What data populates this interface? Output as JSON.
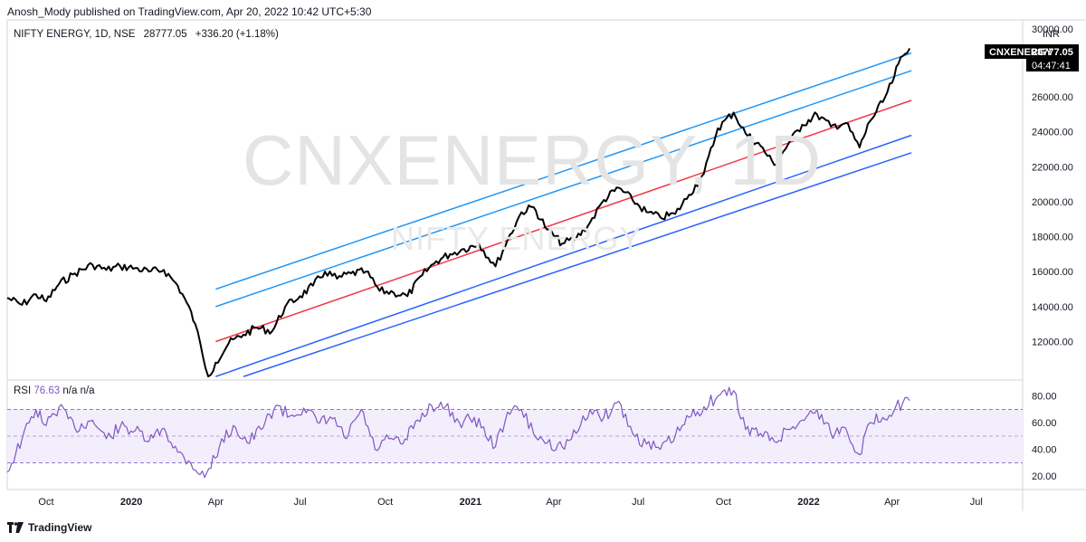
{
  "publisher": "Anosh_Mody published on TradingView.com, Apr 20, 2022 10:42 UTC+5:30",
  "legend": {
    "title": "NIFTY ENERGY, 1D, NSE",
    "last": "28777.05",
    "change": "+336.20 (+1.18%)"
  },
  "watermark": {
    "symbol": "CNXENERGY, 1D",
    "description": "NIFTY ENERGY"
  },
  "price_axis": {
    "currency": "INR",
    "top_tick": "30000.00",
    "ticks": [
      "26000.00",
      "24000.00",
      "22000.00",
      "20000.00",
      "18000.00",
      "16000.00",
      "14000.00",
      "12000.00"
    ]
  },
  "price_tag": {
    "symbol": "CNXENERGY",
    "price": "28777.05",
    "countdown": "04:47:41"
  },
  "rsi_legend": {
    "name": "RSI",
    "value": "76.63",
    "na1": "n/a",
    "na2": "n/a"
  },
  "rsi_axis": {
    "ticks": [
      "80.00",
      "60.00",
      "40.00",
      "20.00"
    ]
  },
  "time_axis": {
    "labels": [
      "Oct",
      "2020",
      "Apr",
      "Jul",
      "Oct",
      "2021",
      "Apr",
      "Jul",
      "Oct",
      "2022",
      "Apr",
      "Jul"
    ]
  },
  "footer": {
    "brand": "TradingView"
  },
  "colors": {
    "price_line": "#000000",
    "channel_outer": "#2196f3",
    "channel_lower": "#2962ff",
    "regression_mid": "#f23645",
    "rsi_line": "#7e57c2",
    "rsi_band": "#f3eefb",
    "tag_bg": "#000000"
  },
  "chart_data": [
    {
      "type": "line",
      "title": "NIFTY ENERGY, 1D, NSE",
      "ylabel": "INR",
      "ylim": [
        9800,
        30400
      ],
      "x_range": [
        "2019-08-20",
        "2022-08-20"
      ],
      "series": [
        {
          "values": [
            [
              "2019-08-20",
              14500
            ],
            [
              "2019-09-05",
              14100
            ],
            [
              "2019-09-20",
              14700
            ],
            [
              "2019-10-01",
              14300
            ],
            [
              "2019-10-15",
              15300
            ],
            [
              "2019-11-01",
              15900
            ],
            [
              "2019-11-20",
              16400
            ],
            [
              "2019-12-05",
              16100
            ],
            [
              "2019-12-20",
              16300
            ],
            [
              "2020-01-05",
              16200
            ],
            [
              "2020-01-20",
              16000
            ],
            [
              "2020-02-05",
              16100
            ],
            [
              "2020-02-20",
              15200
            ],
            [
              "2020-03-01",
              14200
            ],
            [
              "2020-03-10",
              13000
            ],
            [
              "2020-03-18",
              11200
            ],
            [
              "2020-03-24",
              10000
            ],
            [
              "2020-04-01",
              10800
            ],
            [
              "2020-04-15",
              11900
            ],
            [
              "2020-05-01",
              12400
            ],
            [
              "2020-05-15",
              12800
            ],
            [
              "2020-06-01",
              12600
            ],
            [
              "2020-06-15",
              14000
            ],
            [
              "2020-07-01",
              14600
            ],
            [
              "2020-07-15",
              15200
            ],
            [
              "2020-07-28",
              16000
            ],
            [
              "2020-08-10",
              15600
            ],
            [
              "2020-08-25",
              15900
            ],
            [
              "2020-09-10",
              16000
            ],
            [
              "2020-09-25",
              14900
            ],
            [
              "2020-10-10",
              14800
            ],
            [
              "2020-10-25",
              14600
            ],
            [
              "2020-11-10",
              15800
            ],
            [
              "2020-11-25",
              16600
            ],
            [
              "2020-12-10",
              17000
            ],
            [
              "2020-12-25",
              17300
            ],
            [
              "2021-01-10",
              17600
            ],
            [
              "2021-01-28",
              16300
            ],
            [
              "2021-02-10",
              17800
            ],
            [
              "2021-02-25",
              19400
            ],
            [
              "2021-03-10",
              19700
            ],
            [
              "2021-03-25",
              18400
            ],
            [
              "2021-04-10",
              17600
            ],
            [
              "2021-04-25",
              17900
            ],
            [
              "2021-05-10",
              18800
            ],
            [
              "2021-05-25",
              20100
            ],
            [
              "2021-06-10",
              20800
            ],
            [
              "2021-06-25",
              20100
            ],
            [
              "2021-07-10",
              19400
            ],
            [
              "2021-07-25",
              19100
            ],
            [
              "2021-08-10",
              19300
            ],
            [
              "2021-08-25",
              20400
            ],
            [
              "2021-09-10",
              21600
            ],
            [
              "2021-09-25",
              24200
            ],
            [
              "2021-10-12",
              25100
            ],
            [
              "2021-10-25",
              23900
            ],
            [
              "2021-11-10",
              23200
            ],
            [
              "2021-11-25",
              22100
            ],
            [
              "2021-12-10",
              23300
            ],
            [
              "2021-12-25",
              24400
            ],
            [
              "2022-01-10",
              25000
            ],
            [
              "2022-01-25",
              24300
            ],
            [
              "2022-02-10",
              24500
            ],
            [
              "2022-02-25",
              23100
            ],
            [
              "2022-03-08",
              24600
            ],
            [
              "2022-03-22",
              25700
            ],
            [
              "2022-04-01",
              26800
            ],
            [
              "2022-04-08",
              27900
            ],
            [
              "2022-04-20",
              28777
            ]
          ]
        }
      ],
      "channel_lines": [
        {
          "role": "upper-outer",
          "from": [
            "2020-04-01",
            15000
          ],
          "to": [
            "2022-04-22",
            28500
          ]
        },
        {
          "role": "upper-inner",
          "from": [
            "2020-04-01",
            14000
          ],
          "to": [
            "2022-04-22",
            27500
          ]
        },
        {
          "role": "regression-mid",
          "from": [
            "2020-04-01",
            12000
          ],
          "to": [
            "2022-04-22",
            25800
          ]
        },
        {
          "role": "lower-inner",
          "from": [
            "2020-04-01",
            10000
          ],
          "to": [
            "2022-04-22",
            23800
          ]
        },
        {
          "role": "lower-outer",
          "from": [
            "2020-05-01",
            10000
          ],
          "to": [
            "2022-04-22",
            22800
          ]
        }
      ]
    },
    {
      "type": "line",
      "title": "RSI",
      "ylim": [
        10,
        92
      ],
      "bands": [
        30,
        50,
        70
      ],
      "series": [
        {
          "name": "RSI",
          "values": [
            [
              "2019-08-20",
              23
            ],
            [
              "2019-09-05",
              48
            ],
            [
              "2019-09-20",
              70
            ],
            [
              "2019-10-01",
              58
            ],
            [
              "2019-10-15",
              72
            ],
            [
              "2019-11-01",
              56
            ],
            [
              "2019-11-20",
              62
            ],
            [
              "2019-12-05",
              48
            ],
            [
              "2019-12-20",
              57
            ],
            [
              "2020-01-05",
              54
            ],
            [
              "2020-01-20",
              46
            ],
            [
              "2020-02-05",
              56
            ],
            [
              "2020-02-20",
              38
            ],
            [
              "2020-03-05",
              30
            ],
            [
              "2020-03-20",
              19
            ],
            [
              "2020-04-05",
              42
            ],
            [
              "2020-04-20",
              58
            ],
            [
              "2020-05-05",
              45
            ],
            [
              "2020-05-20",
              55
            ],
            [
              "2020-06-05",
              73
            ],
            [
              "2020-06-20",
              65
            ],
            [
              "2020-07-05",
              71
            ],
            [
              "2020-07-20",
              60
            ],
            [
              "2020-08-05",
              63
            ],
            [
              "2020-08-20",
              48
            ],
            [
              "2020-09-05",
              70
            ],
            [
              "2020-09-20",
              40
            ],
            [
              "2020-10-05",
              48
            ],
            [
              "2020-10-20",
              44
            ],
            [
              "2020-11-05",
              62
            ],
            [
              "2020-11-20",
              73
            ],
            [
              "2020-12-05",
              72
            ],
            [
              "2020-12-20",
              60
            ],
            [
              "2021-01-05",
              64
            ],
            [
              "2021-01-28",
              42
            ],
            [
              "2021-02-10",
              68
            ],
            [
              "2021-02-25",
              70
            ],
            [
              "2021-03-10",
              52
            ],
            [
              "2021-03-25",
              45
            ],
            [
              "2021-04-10",
              42
            ],
            [
              "2021-04-25",
              52
            ],
            [
              "2021-05-10",
              70
            ],
            [
              "2021-05-25",
              64
            ],
            [
              "2021-06-10",
              76
            ],
            [
              "2021-06-25",
              52
            ],
            [
              "2021-07-10",
              44
            ],
            [
              "2021-07-25",
              40
            ],
            [
              "2021-08-10",
              50
            ],
            [
              "2021-08-25",
              64
            ],
            [
              "2021-09-10",
              72
            ],
            [
              "2021-09-25",
              80
            ],
            [
              "2021-10-12",
              84
            ],
            [
              "2021-10-25",
              55
            ],
            [
              "2021-11-10",
              52
            ],
            [
              "2021-11-25",
              46
            ],
            [
              "2021-12-10",
              55
            ],
            [
              "2021-12-25",
              62
            ],
            [
              "2022-01-10",
              70
            ],
            [
              "2022-01-25",
              52
            ],
            [
              "2022-02-10",
              56
            ],
            [
              "2022-02-25",
              36
            ],
            [
              "2022-03-08",
              60
            ],
            [
              "2022-03-22",
              64
            ],
            [
              "2022-04-05",
              72
            ],
            [
              "2022-04-20",
              76.63
            ]
          ]
        }
      ]
    }
  ]
}
